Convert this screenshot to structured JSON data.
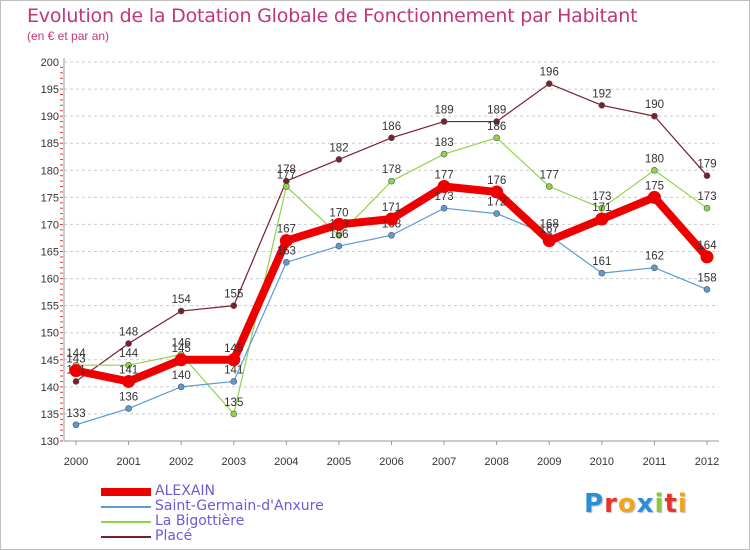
{
  "chart_data": {
    "type": "line",
    "title": "Evolution de la Dotation Globale de Fonctionnement par Habitant",
    "subtitle": "(en € et par an)",
    "xlabel": "",
    "ylabel": "",
    "ylim": [
      130,
      200
    ],
    "ytick_step": 5,
    "grid": "horizontal dashed",
    "legend_position": "bottom-left",
    "x": [
      "2000",
      "2001",
      "2002",
      "2003",
      "2004",
      "2005",
      "2006",
      "2007",
      "2008",
      "2009",
      "2010",
      "2011",
      "2012"
    ],
    "series": [
      {
        "name": "Placé",
        "color": "#7a1f2e",
        "values": [
          141,
          148,
          154,
          155,
          178,
          182,
          186,
          189,
          189,
          196,
          192,
          190,
          179
        ]
      },
      {
        "name": "La Bigottière",
        "color": "#8fd44a",
        "values": [
          144,
          144,
          146,
          135,
          177,
          168,
          178,
          183,
          186,
          177,
          173,
          180,
          173
        ]
      },
      {
        "name": "Saint-Germain-d'Anxure",
        "color": "#5b9bd5",
        "values": [
          133,
          136,
          140,
          141,
          163,
          166,
          168,
          173,
          172,
          168,
          161,
          162,
          158
        ]
      },
      {
        "name": "ALEXAIN",
        "color": "#ee0000",
        "values": [
          143,
          141,
          145,
          145,
          167,
          170,
          171,
          177,
          176,
          167,
          171,
          175,
          164
        ],
        "bold": true
      }
    ],
    "legend": [
      {
        "name": "ALEXAIN",
        "color": "#ee0000",
        "text_color": "#6b5bd6"
      },
      {
        "name": "Saint-Germain-d'Anxure",
        "color": "#5b9bd5",
        "text_color": "#6b5bd6"
      },
      {
        "name": "La Bigottière",
        "color": "#8fd44a",
        "text_color": "#6b5bd6"
      },
      {
        "name": "Placé",
        "color": "#7a1f2e",
        "text_color": "#6b5bd6"
      }
    ]
  },
  "logo": {
    "text": "Proxiti",
    "colors": [
      "#2b8fd6",
      "#e8322e",
      "#f2a21b",
      "#2b8fd6",
      "#8cc63f",
      "#e8322e",
      "#f2a21b"
    ]
  }
}
